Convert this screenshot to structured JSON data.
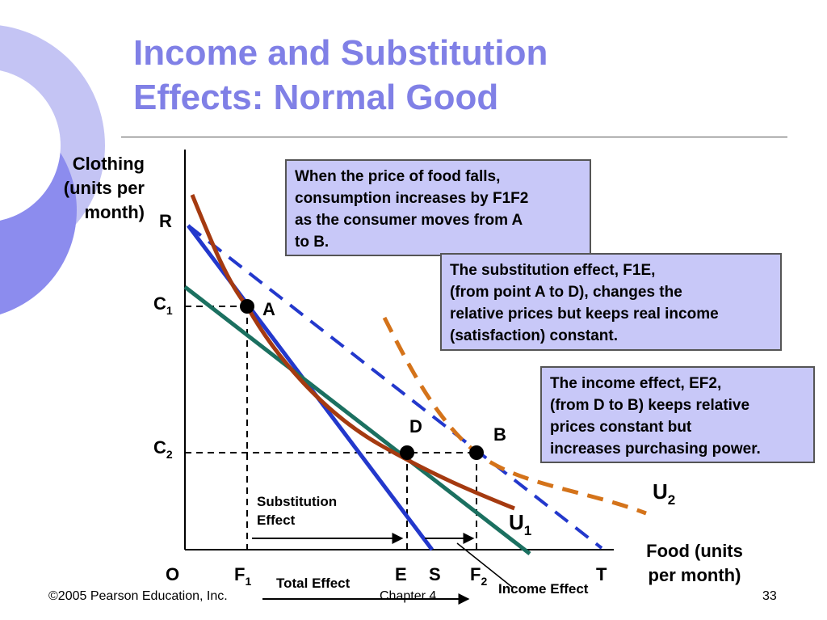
{
  "slide": {
    "title_line1": "Income and Substitution",
    "title_line2": "Effects: Normal Good",
    "colors": {
      "title": "#8080e6",
      "deco_dark": "#8c8cee",
      "deco_light": "#c4c4f4",
      "box_fill": "#c8c8f8"
    }
  },
  "axes": {
    "y_title": "Clothing\n(units per\nmonth)",
    "x_title": "Food (units\nper month)",
    "origin": "O",
    "y_ticks": {
      "R": "R",
      "C1": "C",
      "C1_sub": "1",
      "C2": "C",
      "C2_sub": "2"
    },
    "x_ticks": {
      "F1": "F",
      "F1_sub": "1",
      "E": "E",
      "S": "S",
      "F2": "F",
      "F2_sub": "2",
      "T": "T"
    }
  },
  "points": {
    "A": "A",
    "D": "D",
    "B": "B"
  },
  "curves": {
    "U1": "U",
    "U1_sub": "1",
    "U2": "U",
    "U2_sub": "2"
  },
  "effects": {
    "substitution_line1": "Substitution",
    "substitution_line2": "Effect",
    "total": "Total Effect",
    "income": "Income Effect"
  },
  "boxes": {
    "price_fall": "When the price of food falls,\nconsumption increases by F1F2\nas the consumer moves from  A\nto B.",
    "substitution": "The substitution effect, F1E,\n(from point A to D),  changes the\nrelative prices but keeps real income\n(satisfaction) constant.",
    "income": "The income effect, EF2,\n(from D to B) keeps relative\nprices constant but\nincreases purchasing power."
  },
  "footer": {
    "copyright": "©2005 Pearson Education, Inc.",
    "chapter": "Chapter 4",
    "page": "33"
  }
}
